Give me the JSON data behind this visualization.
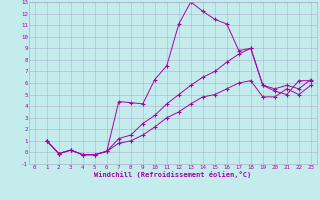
{
  "xlabel": "Windchill (Refroidissement éolien,°C)",
  "background_color": "#c5ecec",
  "grid_color": "#b0b0cc",
  "line_color": "#aa00aa",
  "xlim": [
    -0.5,
    23.5
  ],
  "ylim": [
    -1,
    13
  ],
  "xticks": [
    0,
    1,
    2,
    3,
    4,
    5,
    6,
    7,
    8,
    9,
    10,
    11,
    12,
    13,
    14,
    15,
    16,
    17,
    18,
    19,
    20,
    21,
    22,
    23
  ],
  "yticks": [
    -1,
    0,
    1,
    2,
    3,
    4,
    5,
    6,
    7,
    8,
    9,
    10,
    11,
    12,
    13
  ],
  "series1_x": [
    1,
    2,
    3,
    4,
    5,
    6,
    7,
    8,
    9,
    10,
    11,
    12,
    13,
    14,
    15,
    16,
    17,
    18,
    19,
    20,
    21,
    22,
    23
  ],
  "series1_y": [
    1.0,
    -0.1,
    0.2,
    -0.2,
    -0.2,
    0.1,
    4.4,
    4.3,
    4.2,
    6.3,
    7.5,
    11.1,
    13.0,
    12.2,
    11.5,
    11.1,
    8.8,
    9.0,
    5.8,
    5.3,
    5.0,
    6.2,
    6.2
  ],
  "series2_x": [
    1,
    2,
    3,
    4,
    5,
    6,
    7,
    8,
    9,
    10,
    11,
    12,
    13,
    14,
    15,
    16,
    17,
    18,
    19,
    20,
    21,
    22,
    23
  ],
  "series2_y": [
    1.0,
    -0.1,
    0.2,
    -0.2,
    -0.2,
    0.1,
    1.2,
    1.5,
    2.5,
    3.2,
    4.2,
    5.0,
    5.8,
    6.5,
    7.0,
    7.8,
    8.5,
    9.0,
    5.8,
    5.5,
    5.8,
    5.5,
    6.3
  ],
  "series3_x": [
    1,
    2,
    3,
    4,
    5,
    6,
    7,
    8,
    9,
    10,
    11,
    12,
    13,
    14,
    15,
    16,
    17,
    18,
    19,
    20,
    21,
    22,
    23
  ],
  "series3_y": [
    1.0,
    -0.1,
    0.2,
    -0.2,
    -0.2,
    0.1,
    0.8,
    1.0,
    1.5,
    2.2,
    3.0,
    3.5,
    4.2,
    4.8,
    5.0,
    5.5,
    6.0,
    6.2,
    4.8,
    4.8,
    5.5,
    5.0,
    5.8
  ]
}
